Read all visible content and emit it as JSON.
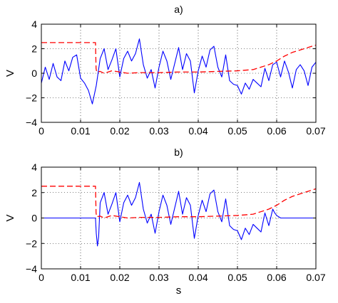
{
  "chart_data": [
    {
      "type": "line",
      "title": "a)",
      "xlabel": "",
      "ylabel": "V",
      "xlim": [
        0,
        0.07
      ],
      "ylim": [
        -4,
        4
      ],
      "xticks": [
        0,
        0.01,
        0.02,
        0.03,
        0.04,
        0.05,
        0.06,
        0.07
      ],
      "xtick_labels": [
        "0",
        "0.01",
        "0.02",
        "0.03",
        "0.04",
        "0.05",
        "0.06",
        "0.07"
      ],
      "yticks": [
        -4,
        -2,
        0,
        2,
        4
      ],
      "ytick_labels": [
        "−4",
        "−2",
        "0",
        "2",
        "4"
      ],
      "grid": true,
      "series": [
        {
          "color": "#0000ff",
          "style": "solid",
          "x": [
            0,
            0.001,
            0.002,
            0.003,
            0.004,
            0.005,
            0.006,
            0.007,
            0.008,
            0.009,
            0.01,
            0.011,
            0.012,
            0.013,
            0.014,
            0.015,
            0.016,
            0.017,
            0.018,
            0.019,
            0.02,
            0.021,
            0.022,
            0.023,
            0.024,
            0.025,
            0.026,
            0.027,
            0.028,
            0.029,
            0.03,
            0.031,
            0.032,
            0.033,
            0.034,
            0.035,
            0.036,
            0.037,
            0.038,
            0.039,
            0.04,
            0.041,
            0.042,
            0.043,
            0.044,
            0.045,
            0.046,
            0.047,
            0.048,
            0.049,
            0.05,
            0.051,
            0.052,
            0.053,
            0.054,
            0.055,
            0.056,
            0.057,
            0.058,
            0.059,
            0.06,
            0.061,
            0.062,
            0.063,
            0.064,
            0.065,
            0.066,
            0.067,
            0.068,
            0.069,
            0.07
          ],
          "y": [
            -0.8,
            0.5,
            -0.5,
            0.8,
            -0.3,
            -0.6,
            1.0,
            0.2,
            1.3,
            1.5,
            -0.4,
            -0.8,
            -1.4,
            -2.5,
            -1.0,
            1.2,
            2.0,
            0.3,
            1.1,
            2.0,
            -0.3,
            1.2,
            1.8,
            1.0,
            1.6,
            2.8,
            0.7,
            -0.4,
            0.3,
            -1.2,
            0.5,
            1.8,
            1.0,
            -0.5,
            0.8,
            2.1,
            0.3,
            1.6,
            1.0,
            -1.6,
            0.2,
            1.4,
            0.5,
            1.9,
            2.2,
            0.5,
            -0.3,
            1.5,
            -0.6,
            -0.9,
            -1.0,
            -1.7,
            -0.8,
            -1.3,
            -0.5,
            -0.8,
            -1.1,
            0.4,
            -0.6,
            0.7,
            0.9,
            -0.3,
            1.0,
            0.1,
            -1.2,
            0.3,
            0.7,
            0.2,
            -1.0,
            0.5,
            0.9
          ]
        },
        {
          "color": "#ff0000",
          "style": "dashed",
          "x": [
            0,
            0.0138,
            0.01395,
            0.0141,
            0.015,
            0.016,
            0.018,
            0.02,
            0.022,
            0.025,
            0.03,
            0.035,
            0.04,
            0.045,
            0.05,
            0.054,
            0.056,
            0.058,
            0.06,
            0.062,
            0.064,
            0.066,
            0.068,
            0.07
          ],
          "y": [
            2.5,
            2.5,
            0.4,
            0.1,
            0.15,
            0.0,
            0.2,
            0.1,
            0.0,
            0.05,
            0.05,
            0.1,
            0.1,
            0.15,
            0.2,
            0.3,
            0.5,
            0.7,
            1.0,
            1.4,
            1.7,
            1.9,
            2.1,
            2.3
          ]
        }
      ]
    },
    {
      "type": "line",
      "title": "b)",
      "xlabel": "s",
      "ylabel": "V",
      "xlim": [
        0,
        0.07
      ],
      "ylim": [
        -4,
        4
      ],
      "xticks": [
        0,
        0.01,
        0.02,
        0.03,
        0.04,
        0.05,
        0.06,
        0.07
      ],
      "xtick_labels": [
        "0",
        "0.01",
        "0.02",
        "0.03",
        "0.04",
        "0.05",
        "0.06",
        "0.07"
      ],
      "yticks": [
        -4,
        -2,
        0,
        2,
        4
      ],
      "ytick_labels": [
        "−4",
        "−2",
        "0",
        "2",
        "4"
      ],
      "grid": true,
      "series": [
        {
          "color": "#0000ff",
          "style": "solid",
          "x": [
            0,
            0.013,
            0.0138,
            0.014,
            0.0143,
            0.0146,
            0.015,
            0.016,
            0.017,
            0.018,
            0.019,
            0.02,
            0.021,
            0.022,
            0.023,
            0.024,
            0.025,
            0.026,
            0.027,
            0.028,
            0.029,
            0.03,
            0.031,
            0.032,
            0.033,
            0.034,
            0.035,
            0.036,
            0.037,
            0.038,
            0.039,
            0.04,
            0.041,
            0.042,
            0.043,
            0.044,
            0.045,
            0.046,
            0.047,
            0.048,
            0.049,
            0.05,
            0.051,
            0.052,
            0.053,
            0.054,
            0.055,
            0.056,
            0.057,
            0.058,
            0.059,
            0.0595,
            0.06,
            0.061,
            0.07
          ],
          "y": [
            0,
            0,
            0,
            -1.2,
            -2.2,
            -1.5,
            1.2,
            2.0,
            0.3,
            1.1,
            2.0,
            -0.3,
            1.2,
            1.8,
            1.0,
            1.6,
            2.8,
            0.7,
            -0.4,
            0.3,
            -1.2,
            0.5,
            1.8,
            1.0,
            -0.5,
            0.8,
            2.1,
            0.3,
            1.6,
            1.0,
            -1.6,
            0.2,
            1.4,
            0.5,
            1.9,
            2.2,
            0.5,
            -0.3,
            1.5,
            -0.6,
            -0.9,
            -1.0,
            -1.7,
            -0.8,
            -1.3,
            -0.5,
            -0.8,
            -1.1,
            0.4,
            -0.6,
            0.7,
            0.4,
            0.2,
            0,
            0
          ]
        },
        {
          "color": "#ff0000",
          "style": "dashed",
          "x": [
            0,
            0.0138,
            0.01395,
            0.0141,
            0.015,
            0.016,
            0.018,
            0.02,
            0.022,
            0.025,
            0.03,
            0.035,
            0.04,
            0.045,
            0.05,
            0.054,
            0.056,
            0.058,
            0.06,
            0.062,
            0.064,
            0.066,
            0.068,
            0.07
          ],
          "y": [
            2.5,
            2.5,
            0.4,
            0.1,
            0.15,
            0.0,
            0.2,
            0.1,
            0.0,
            0.05,
            0.05,
            0.1,
            0.1,
            0.15,
            0.2,
            0.3,
            0.5,
            0.7,
            1.0,
            1.4,
            1.7,
            1.9,
            2.1,
            2.3
          ]
        }
      ]
    }
  ]
}
